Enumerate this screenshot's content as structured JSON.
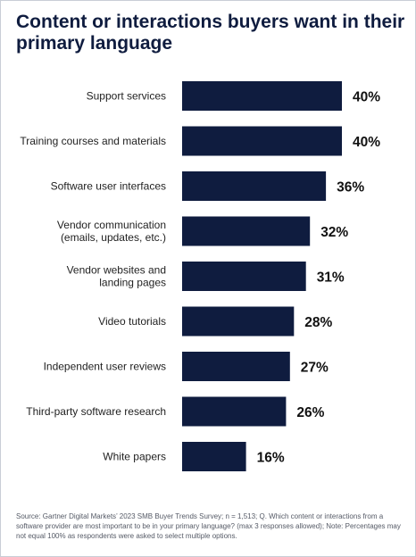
{
  "title": "Content or interactions buyers want in their primary language",
  "source_note": "Source: Gartner Digital Markets’ 2023 SMB Buyer Trends Survey; n = 1,513; Q. Which content or interactions from a software provider are most important to be in your primary language? (max 3 responses allowed); Note: Percentages may not equal 100% as respondents were asked to select multiple options.",
  "colors": {
    "bar": "#0f1c3f",
    "title": "#0f1c3f"
  },
  "chart_data": {
    "type": "bar",
    "orientation": "horizontal",
    "title": "Content or interactions buyers want in their primary language",
    "xlabel": "",
    "ylabel": "",
    "xlim": [
      0,
      40
    ],
    "grid": false,
    "categories": [
      [
        "Support services"
      ],
      [
        "Training courses and materials"
      ],
      [
        "Software user interfaces"
      ],
      [
        "Vendor communication",
        "(emails, updates, etc.)"
      ],
      [
        "Vendor websites and",
        "landing pages"
      ],
      [
        "Video tutorials"
      ],
      [
        "Independent user reviews"
      ],
      [
        "Third-party software research"
      ],
      [
        "White papers"
      ]
    ],
    "values": [
      40,
      40,
      36,
      32,
      31,
      28,
      27,
      26,
      16
    ],
    "value_labels": [
      "40%",
      "40%",
      "36%",
      "32%",
      "31%",
      "28%",
      "27%",
      "26%",
      "16%"
    ]
  }
}
